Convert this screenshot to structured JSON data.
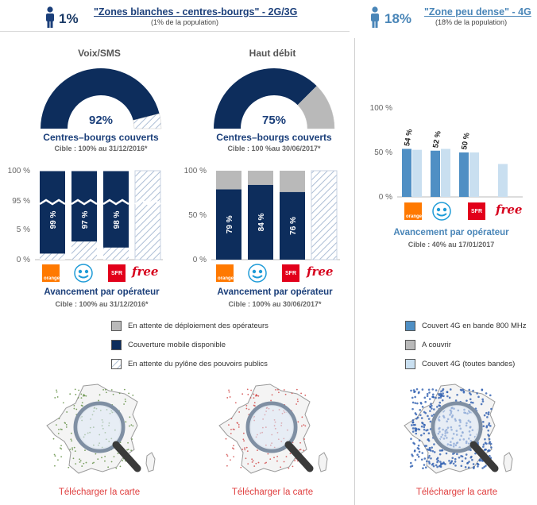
{
  "zones": {
    "left": {
      "pct": "1%",
      "title": "\"Zones blanches - centres-bourgs\" - 2G/3G",
      "subtitle": "(1% de la population)"
    },
    "right": {
      "pct": "18%",
      "title": "\"Zone peu dense\" - 4G",
      "subtitle": "(18% de la population)"
    }
  },
  "gauges": [
    {
      "title": "Voix/SMS",
      "value_label": "92%",
      "value": 92,
      "caption": "Centres–bourgs couverts",
      "cible": "Cible : 100% au 31/12/2016*"
    },
    {
      "title": "Haut débit",
      "value_label": "75%",
      "value": 75,
      "caption": "Centres–bourgs couverts",
      "cible": "Cible : 100 %au 30/06/2017*"
    }
  ],
  "avancement": {
    "title": "Avancement par opérateur",
    "left_cible": "Cible : 100% au 31/12/2016*",
    "mid_cible": "Cible : 100% au 30/06/2017*",
    "right_cible": "Cible : 40% au 17/01/2017"
  },
  "operators": {
    "orange": "orange",
    "sfr": "SFR",
    "free": "free"
  },
  "chart_data": [
    {
      "type": "bar",
      "id": "voix-sms-operators",
      "categories": [
        "Orange",
        "Bouygues Telecom",
        "SFR",
        "Free"
      ],
      "yticks": [
        "100 %",
        "95 %",
        "5 %",
        "0 %"
      ],
      "series": [
        {
          "name": "Couverture mobile disponible",
          "values": [
            99,
            97,
            98,
            0
          ]
        },
        {
          "name": "En attente du pylône des pouvoirs publics",
          "values": [
            1,
            3,
            2,
            100
          ]
        }
      ],
      "data_labels": [
        "99 %",
        "97 %",
        "98 %",
        ""
      ],
      "ylim": [
        0,
        100
      ]
    },
    {
      "type": "bar",
      "id": "haut-debit-operators",
      "categories": [
        "Orange",
        "Bouygues Telecom",
        "SFR",
        "Free"
      ],
      "yticks": [
        "100 %",
        "50 %",
        "0 %"
      ],
      "series": [
        {
          "name": "Couverture mobile disponible",
          "values": [
            79,
            84,
            76,
            0
          ]
        },
        {
          "name": "En attente de déploiement des opérateurs",
          "values": [
            21,
            16,
            24,
            0
          ]
        },
        {
          "name": "En attente du pylône des pouvoirs publics",
          "values": [
            0,
            0,
            0,
            100
          ]
        }
      ],
      "data_labels": [
        "79 %",
        "84 %",
        "76 %",
        ""
      ],
      "ylim": [
        0,
        100
      ]
    },
    {
      "type": "bar",
      "id": "4g-zone-peu-dense",
      "categories": [
        "Orange",
        "Bouygues Telecom",
        "SFR",
        "Free"
      ],
      "yticks": [
        "100 %",
        "50 %",
        "0 %"
      ],
      "series": [
        {
          "name": "Couvert 4G en bande 800 MHz",
          "values": [
            54,
            52,
            50,
            0
          ]
        },
        {
          "name": "Couvert 4G (toutes bandes)",
          "values": [
            53,
            54,
            50,
            37
          ]
        }
      ],
      "data_labels": [
        "54 %",
        "52 %",
        "50 %",
        ""
      ],
      "ylim": [
        0,
        100
      ]
    }
  ],
  "legend_left": [
    {
      "label": "En attente de déploiement des opérateurs",
      "color": "#b9b9b9"
    },
    {
      "label": "Couverture mobile disponible",
      "color": "#0d2d5c"
    },
    {
      "label": "En attente du pylône des pouvoirs publics",
      "color": "hatch"
    }
  ],
  "legend_right": [
    {
      "label": "Couvert 4G en bande 800 MHz",
      "color": "#4f8fc4"
    },
    {
      "label": "A couvrir",
      "color": "#b9b9b9"
    },
    {
      "label": "Couvert 4G (toutes bandes)",
      "color": "#c9dff0"
    }
  ],
  "maps": [
    {
      "link": "Télécharger la carte",
      "dots": "#5a8a3a"
    },
    {
      "link": "Télécharger la carte",
      "dots": "#d04040"
    },
    {
      "link": "Télécharger la carte",
      "dots": "#2f5fb0"
    }
  ],
  "colors": {
    "dark_navy": "#0d2d5c",
    "grey": "#b9b9b9",
    "light_blue": "#c9dff0",
    "mid_blue": "#4f8fc4"
  }
}
